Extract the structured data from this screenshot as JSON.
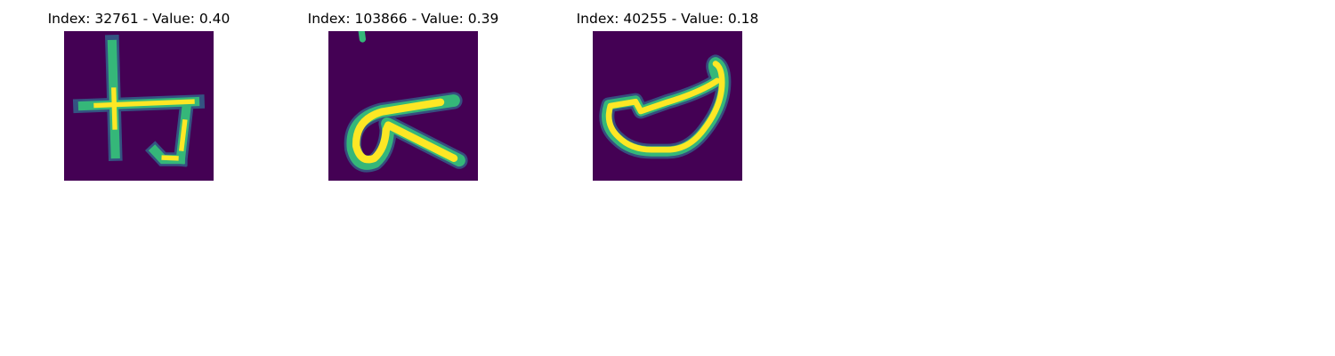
{
  "panels": [
    {
      "title": "Index: 32761 - Value: 0.40",
      "glyph": "cross-hook-character"
    },
    {
      "title": "Index: 103866 - Value: 0.39",
      "glyph": "loop-arrow-character"
    },
    {
      "title": "Index: 40255 - Value: 0.18",
      "glyph": "bowl-character"
    }
  ],
  "colors": {
    "background": "#440154",
    "low": "#31688e",
    "mid": "#35b779",
    "high": "#fde725"
  }
}
